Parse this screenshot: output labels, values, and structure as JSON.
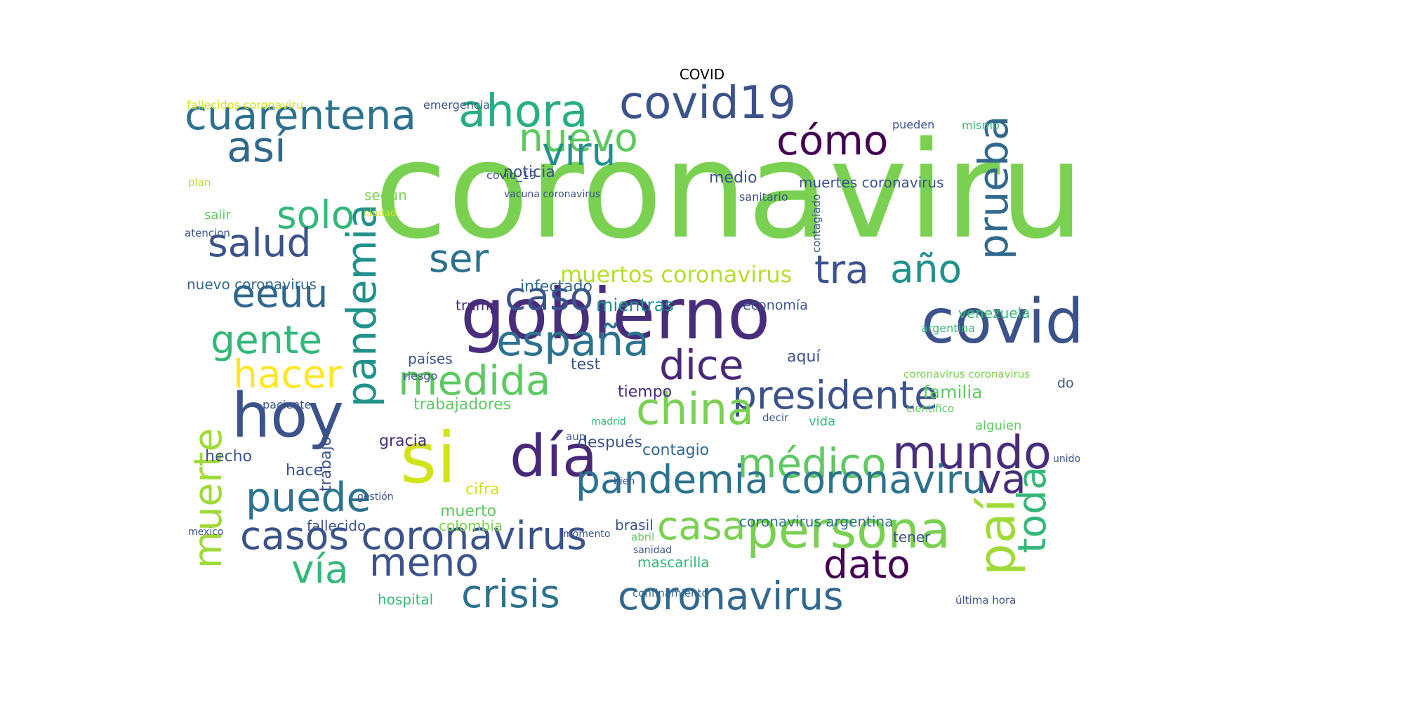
{
  "figure": {
    "title": "COVID"
  },
  "word_cloud": {
    "words": [
      {
        "text": "coronaviru",
        "color": "#7ad151"
      },
      {
        "text": "gobierno",
        "color": "#472d7b"
      },
      {
        "text": "covid19",
        "color": "#3b528b"
      },
      {
        "text": "ahora",
        "color": "#28ae80"
      },
      {
        "text": "cuarentena",
        "color": "#2c728e"
      },
      {
        "text": "así",
        "color": "#31688e"
      },
      {
        "text": "nuevo",
        "color": "#5ec962"
      },
      {
        "text": "viru",
        "color": "#21918c"
      },
      {
        "text": "cómo",
        "color": "#440154"
      },
      {
        "text": "prueba",
        "color": "#31688e"
      },
      {
        "text": "solo",
        "color": "#35b779"
      },
      {
        "text": "salud",
        "color": "#3b528b"
      },
      {
        "text": "pandemia",
        "color": "#21918c"
      },
      {
        "text": "ser",
        "color": "#2c728e"
      },
      {
        "text": "tra",
        "color": "#3b528b"
      },
      {
        "text": "año",
        "color": "#21918c"
      },
      {
        "text": "covid",
        "color": "#3b528b"
      },
      {
        "text": "eeuu",
        "color": "#31688e"
      },
      {
        "text": "caso",
        "color": "#3b528b"
      },
      {
        "text": "españa",
        "color": "#2c728e"
      },
      {
        "text": "gente",
        "color": "#35b779"
      },
      {
        "text": "hacer",
        "color": "#fde725"
      },
      {
        "text": "medida",
        "color": "#5ec962"
      },
      {
        "text": "dice",
        "color": "#482878"
      },
      {
        "text": "presidente",
        "color": "#3b528b"
      },
      {
        "text": "hoy",
        "color": "#3b528b"
      },
      {
        "text": "china",
        "color": "#7ad151"
      },
      {
        "text": "día",
        "color": "#482878"
      },
      {
        "text": "mundo",
        "color": "#472d7b"
      },
      {
        "text": "médico",
        "color": "#5ec962"
      },
      {
        "text": "si",
        "color": "#d2e21b"
      },
      {
        "text": "muerte",
        "color": "#a0da39"
      },
      {
        "text": "puede",
        "color": "#2c728e"
      },
      {
        "text": "pandemia coronaviru",
        "color": "#2c728e"
      },
      {
        "text": "va",
        "color": "#472d7b"
      },
      {
        "text": "casos coronavirus",
        "color": "#3b528b"
      },
      {
        "text": "casa",
        "color": "#7ad151"
      },
      {
        "text": "persona",
        "color": "#7ad151"
      },
      {
        "text": "paí",
        "color": "#a0da39"
      },
      {
        "text": "toda",
        "color": "#35b779"
      },
      {
        "text": "vía",
        "color": "#35b779"
      },
      {
        "text": "meno",
        "color": "#3b528b"
      },
      {
        "text": "dato",
        "color": "#440154"
      },
      {
        "text": "crisis",
        "color": "#2c728e"
      },
      {
        "text": "coronavirus",
        "color": "#31688e"
      },
      {
        "text": "muertos coronavirus",
        "color": "#b5de2b"
      },
      {
        "text": "noticia",
        "color": "#3b528b"
      },
      {
        "text": "emergencia",
        "color": "#3b528b"
      },
      {
        "text": "fallecidos coronaviru",
        "color": "#d2e21b"
      },
      {
        "text": "covid_19",
        "color": "#3b528b"
      },
      {
        "text": "según",
        "color": "#7ad151"
      },
      {
        "text": "infectado",
        "color": "#31688e"
      },
      {
        "text": "trump",
        "color": "#482878"
      },
      {
        "text": "mientras",
        "color": "#21918c"
      },
      {
        "text": "economía",
        "color": "#3b528b"
      },
      {
        "text": "venezuela",
        "color": "#35b779"
      },
      {
        "text": "argentina",
        "color": "#35b779"
      },
      {
        "text": "nuevo coronavirus",
        "color": "#31688e"
      },
      {
        "text": "muertes coronavirus",
        "color": "#3b528b"
      },
      {
        "text": "medio",
        "color": "#3b528b"
      },
      {
        "text": "sanitario",
        "color": "#3b528b"
      },
      {
        "text": "test",
        "color": "#3b528b"
      },
      {
        "text": "aquí",
        "color": "#3b528b"
      },
      {
        "text": "tiempo",
        "color": "#472d7b"
      },
      {
        "text": "familia",
        "color": "#5ec962"
      },
      {
        "text": "trabajadores",
        "color": "#5ec962"
      },
      {
        "text": "después",
        "color": "#3b528b"
      },
      {
        "text": "contagio",
        "color": "#31688e"
      },
      {
        "text": "gracia",
        "color": "#472d7b"
      },
      {
        "text": "hecho",
        "color": "#3b528b"
      },
      {
        "text": "hace",
        "color": "#3b528b"
      },
      {
        "text": "trabajo",
        "color": "#3b528b"
      },
      {
        "text": "cifra",
        "color": "#d2e21b"
      },
      {
        "text": "muerto",
        "color": "#5ec962"
      },
      {
        "text": "fallecido",
        "color": "#3b528b"
      },
      {
        "text": "colombia",
        "color": "#7ad151"
      },
      {
        "text": "brasil",
        "color": "#3b528b"
      },
      {
        "text": "coronavirus argentina",
        "color": "#2c728e"
      },
      {
        "text": "mascarilla",
        "color": "#35b779"
      },
      {
        "text": "hospital",
        "color": "#35b779"
      },
      {
        "text": "tener",
        "color": "#3b528b"
      },
      {
        "text": "paciente",
        "color": "#3b528b"
      },
      {
        "text": "salir",
        "color": "#5ec962"
      },
      {
        "text": "atencion",
        "color": "#3b528b"
      },
      {
        "text": "plan",
        "color": "#b5de2b"
      },
      {
        "text": "ciudad",
        "color": "#d2e21b"
      },
      {
        "text": "vida",
        "color": "#35b779"
      },
      {
        "text": "alguien",
        "color": "#5ec962"
      },
      {
        "text": "científico",
        "color": "#5ec962"
      },
      {
        "text": "países",
        "color": "#3b528b"
      },
      {
        "text": "riesgo",
        "color": "#3b528b"
      },
      {
        "text": "madrid",
        "color": "#35b779"
      },
      {
        "text": "vacuna coronavirus",
        "color": "#3b528b"
      },
      {
        "text": "pueden",
        "color": "#3b528b"
      },
      {
        "text": "mismo",
        "color": "#35b779"
      },
      {
        "text": "última hora",
        "color": "#3b528b"
      },
      {
        "text": "contagiado",
        "color": "#3b528b"
      },
      {
        "text": "abril",
        "color": "#5ec962"
      },
      {
        "text": "momento",
        "color": "#3b528b"
      },
      {
        "text": "sanidad",
        "color": "#3b528b"
      },
      {
        "text": "bien",
        "color": "#3b528b"
      },
      {
        "text": "gestión",
        "color": "#3b528b"
      },
      {
        "text": "confinamiento",
        "color": "#31688e"
      },
      {
        "text": "coronavirus coronavirus",
        "color": "#7ad151"
      },
      {
        "text": "mexico",
        "color": "#3b528b"
      },
      {
        "text": "aun",
        "color": "#3b528b"
      },
      {
        "text": "decir",
        "color": "#3b528b"
      },
      {
        "text": "do",
        "color": "#3b528b"
      },
      {
        "text": "unido",
        "color": "#3b528b"
      }
    ]
  }
}
